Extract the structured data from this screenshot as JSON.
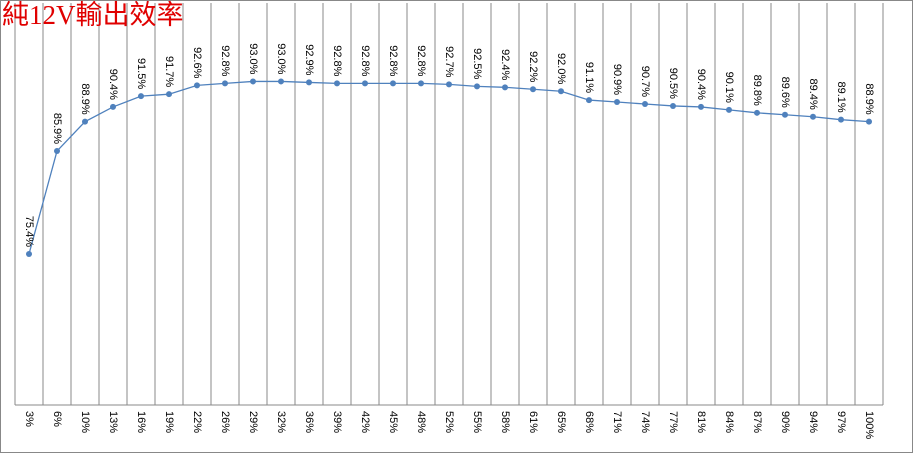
{
  "chart_data": {
    "type": "line",
    "title": "純12V輸出效率",
    "categories": [
      "3%",
      "6%",
      "10%",
      "13%",
      "16%",
      "19%",
      "22%",
      "26%",
      "29%",
      "32%",
      "36%",
      "39%",
      "42%",
      "45%",
      "48%",
      "52%",
      "55%",
      "58%",
      "61%",
      "65%",
      "68%",
      "71%",
      "74%",
      "77%",
      "81%",
      "84%",
      "87%",
      "90%",
      "94%",
      "97%",
      "100%"
    ],
    "values": [
      75.4,
      85.9,
      88.9,
      90.4,
      91.5,
      91.7,
      92.6,
      92.8,
      93.0,
      93.0,
      92.9,
      92.8,
      92.8,
      92.8,
      92.8,
      92.7,
      92.5,
      92.4,
      92.2,
      92.0,
      91.1,
      90.9,
      90.7,
      90.5,
      90.4,
      90.1,
      89.8,
      89.6,
      89.4,
      89.1,
      88.9
    ],
    "value_labels": [
      "75.4%",
      "85.9%",
      "88.9%",
      "90.4%",
      "91.5%",
      "91.7%",
      "92.6%",
      "92.8%",
      "93.0%",
      "93.0%",
      "92.9%",
      "92.8%",
      "92.8%",
      "92.8%",
      "92.8%",
      "92.7%",
      "92.5%",
      "92.4%",
      "92.2%",
      "92.0%",
      "91.1%",
      "90.9%",
      "90.7%",
      "90.5%",
      "90.4%",
      "90.1%",
      "89.8%",
      "89.6%",
      "89.4%",
      "89.1%",
      "88.9%"
    ],
    "color": "#4f81bd",
    "title_color": "#e00000",
    "ylim": [
      60,
      101
    ]
  }
}
